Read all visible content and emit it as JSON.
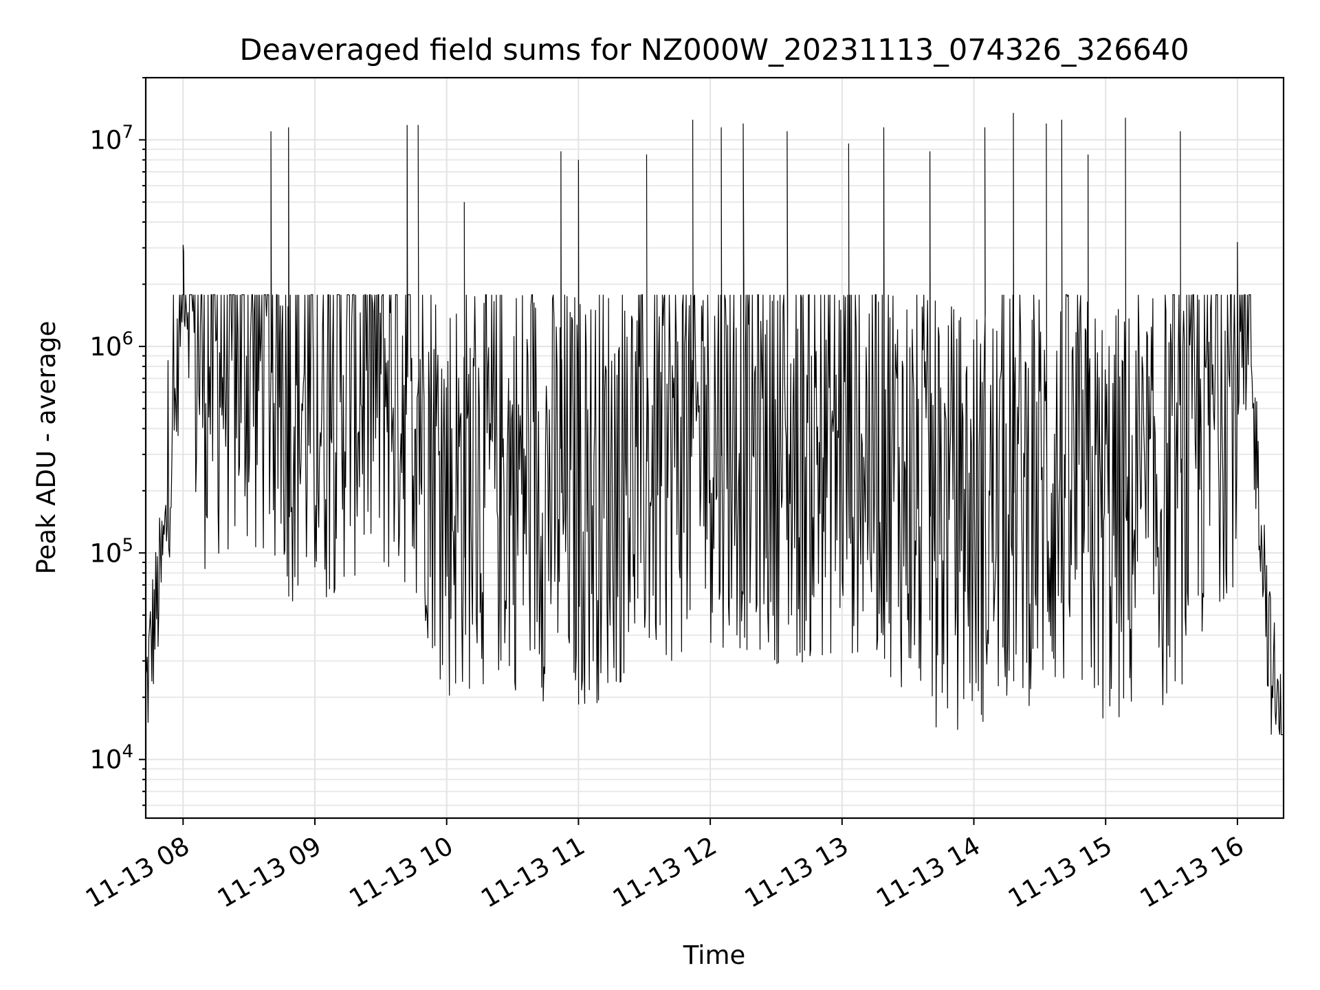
{
  "chart_data": {
    "type": "line",
    "title": "Deaveraged field sums for NZ000W_20231113_074326_326640",
    "xlabel": "Time",
    "ylabel": "Peak ADU - average",
    "x_scale": "time",
    "y_scale": "log",
    "xlim": [
      "2023-11-13 07:43",
      "2023-11-13 16:21"
    ],
    "ylim": [
      5200,
      20000000
    ],
    "x_ticks": [
      "11-13 08",
      "11-13 09",
      "11-13 10",
      "11-13 11",
      "11-13 12",
      "11-13 13",
      "11-13 14",
      "11-13 15",
      "11-13 16"
    ],
    "y_ticks": [
      {
        "base": "10",
        "exp": "4",
        "value": 10000
      },
      {
        "base": "10",
        "exp": "5",
        "value": 100000
      },
      {
        "base": "10",
        "exp": "6",
        "value": 1000000
      },
      {
        "base": "10",
        "exp": "7",
        "value": 10000000
      }
    ],
    "grid": true,
    "legend": "none",
    "series": [
      {
        "color": "#000000",
        "points": [
          [
            "2023-11-13 07:43",
            20000
          ],
          [
            "2023-11-13 07:46",
            40000
          ],
          [
            "2023-11-13 07:49",
            65000
          ],
          [
            "2023-11-13 07:52",
            120000
          ],
          [
            "2023-11-13 07:55",
            300000
          ],
          [
            "2023-11-13 07:58",
            900000
          ],
          [
            "2023-11-13 08:00",
            3000000
          ],
          [
            "2023-11-13 08:03",
            1400000
          ],
          [
            "2023-11-13 08:10",
            900000
          ],
          [
            "2023-11-13 08:20",
            1000000
          ],
          [
            "2023-11-13 08:30",
            1000000
          ],
          [
            "2023-11-13 08:40",
            900000
          ],
          [
            "2023-11-13 08:50",
            600000
          ],
          [
            "2023-11-13 09:00",
            500000
          ],
          [
            "2023-11-13 09:15",
            800000
          ],
          [
            "2023-11-13 09:30",
            750000
          ],
          [
            "2023-11-13 09:45",
            700000
          ],
          [
            "2023-11-13 10:00",
            200000
          ],
          [
            "2023-11-13 10:20",
            250000
          ],
          [
            "2023-11-13 10:40",
            220000
          ],
          [
            "2023-11-13 11:00",
            180000
          ],
          [
            "2023-11-13 11:20",
            250000
          ],
          [
            "2023-11-13 11:40",
            300000
          ],
          [
            "2023-11-13 12:00",
            400000
          ],
          [
            "2023-11-13 12:20",
            350000
          ],
          [
            "2023-11-13 12:40",
            300000
          ],
          [
            "2023-11-13 13:00",
            350000
          ],
          [
            "2023-11-13 13:20",
            300000
          ],
          [
            "2023-11-13 13:40",
            150000
          ],
          [
            "2023-11-13 14:00",
            150000
          ],
          [
            "2023-11-13 14:20",
            200000
          ],
          [
            "2023-11-13 14:40",
            200000
          ],
          [
            "2023-11-13 15:00",
            150000
          ],
          [
            "2023-11-13 15:20",
            150000
          ],
          [
            "2023-11-13 15:40",
            300000
          ],
          [
            "2023-11-13 15:55",
            700000
          ],
          [
            "2023-11-13 16:05",
            900000
          ],
          [
            "2023-11-13 16:10",
            200000
          ],
          [
            "2023-11-13 16:15",
            30000
          ],
          [
            "2023-11-13 16:21",
            10000
          ]
        ],
        "peaks": [
          [
            "2023-11-13 08:00",
            3100000
          ],
          [
            "2023-11-13 08:40",
            11000000
          ],
          [
            "2023-11-13 08:48",
            11500000
          ],
          [
            "2023-11-13 09:42",
            11800000
          ],
          [
            "2023-11-13 09:47",
            11800000
          ],
          [
            "2023-11-13 10:08",
            5000000
          ],
          [
            "2023-11-13 10:52",
            8800000
          ],
          [
            "2023-11-13 11:00",
            8000000
          ],
          [
            "2023-11-13 11:31",
            8500000
          ],
          [
            "2023-11-13 11:52",
            12500000
          ],
          [
            "2023-11-13 12:05",
            11500000
          ],
          [
            "2023-11-13 12:15",
            12000000
          ],
          [
            "2023-11-13 12:35",
            11000000
          ],
          [
            "2023-11-13 13:03",
            9600000
          ],
          [
            "2023-11-13 13:19",
            11500000
          ],
          [
            "2023-11-13 13:40",
            8800000
          ],
          [
            "2023-11-13 14:05",
            11500000
          ],
          [
            "2023-11-13 14:18",
            13500000
          ],
          [
            "2023-11-13 14:33",
            12000000
          ],
          [
            "2023-11-13 14:40",
            12500000
          ],
          [
            "2023-11-13 14:52",
            8500000
          ],
          [
            "2023-11-13 15:09",
            12800000
          ],
          [
            "2023-11-13 15:34",
            11000000
          ],
          [
            "2023-11-13 16:00",
            3200000
          ]
        ]
      }
    ]
  }
}
